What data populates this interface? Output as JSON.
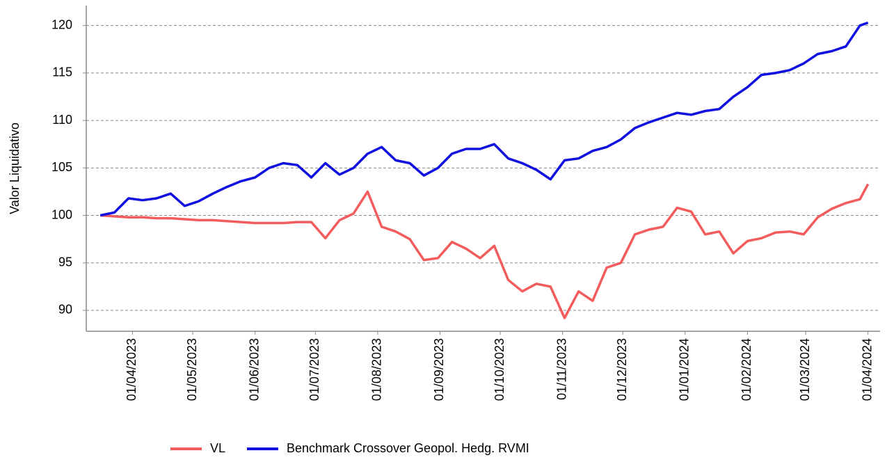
{
  "chart_data": {
    "type": "line",
    "y_label": "Valor Liquidativo",
    "x": [
      "2023-03-16",
      "2023-03-23",
      "2023-03-30",
      "2023-04-06",
      "2023-04-13",
      "2023-04-20",
      "2023-04-27",
      "2023-05-04",
      "2023-05-11",
      "2023-05-18",
      "2023-05-25",
      "2023-06-01",
      "2023-06-08",
      "2023-06-15",
      "2023-06-22",
      "2023-06-29",
      "2023-07-06",
      "2023-07-13",
      "2023-07-20",
      "2023-07-27",
      "2023-08-03",
      "2023-08-10",
      "2023-08-17",
      "2023-08-24",
      "2023-08-31",
      "2023-09-07",
      "2023-09-14",
      "2023-09-21",
      "2023-09-28",
      "2023-10-05",
      "2023-10-12",
      "2023-10-19",
      "2023-10-26",
      "2023-11-02",
      "2023-11-09",
      "2023-11-16",
      "2023-11-23",
      "2023-11-30",
      "2023-12-07",
      "2023-12-14",
      "2023-12-21",
      "2023-12-28",
      "2024-01-04",
      "2024-01-11",
      "2024-01-18",
      "2024-01-25",
      "2024-02-01",
      "2024-02-08",
      "2024-02-15",
      "2024-02-22",
      "2024-02-29",
      "2024-03-07",
      "2024-03-14",
      "2024-03-21",
      "2024-03-28",
      "2024-04-01"
    ],
    "series": [
      {
        "name": "VL",
        "color": "#f25c5c",
        "values": [
          100,
          99.9,
          99.8,
          99.8,
          99.7,
          99.7,
          99.6,
          99.5,
          99.5,
          99.4,
          99.3,
          99.2,
          99.2,
          99.2,
          99.3,
          99.3,
          97.6,
          99.5,
          100.2,
          102.5,
          98.8,
          98.3,
          97.5,
          95.3,
          95.5,
          97.2,
          96.5,
          95.5,
          96.8,
          93.2,
          92,
          92.8,
          92.5,
          89.2,
          92,
          91,
          94.5,
          95,
          98,
          98.5,
          98.8,
          100.8,
          100.4,
          98,
          98.3,
          96,
          97.3,
          97.6,
          98.2,
          98.3,
          98,
          99.8,
          100.7,
          101.3,
          101.7,
          103.3
        ]
      },
      {
        "name": "Benchmark Crossover Geopol. Hedg. RVMI",
        "color": "#1010e0",
        "values": [
          100,
          100.3,
          101.8,
          101.6,
          101.8,
          102.3,
          101,
          101.5,
          102.3,
          103,
          103.6,
          104,
          105,
          105.5,
          105.3,
          104,
          105.5,
          104.3,
          105,
          106.5,
          107.2,
          105.8,
          105.5,
          104.2,
          105,
          106.5,
          107,
          107,
          107.5,
          106,
          105.5,
          104.8,
          103.8,
          105.8,
          106,
          106.8,
          107.2,
          108,
          109.2,
          109.8,
          110.3,
          110.8,
          110.6,
          111,
          111.2,
          112.5,
          113.5,
          114.8,
          115,
          115.3,
          116,
          117,
          117.3,
          117.8,
          120,
          120.3
        ]
      }
    ],
    "xlim": [
      "2023-03-09",
      "2024-04-07"
    ],
    "xticks": [
      {
        "value": "2023-04-01",
        "label": "01/04/2023"
      },
      {
        "value": "2023-05-01",
        "label": "01/05/2023"
      },
      {
        "value": "2023-06-01",
        "label": "01/06/2023"
      },
      {
        "value": "2023-07-01",
        "label": "01/07/2023"
      },
      {
        "value": "2023-08-01",
        "label": "01/08/2023"
      },
      {
        "value": "2023-09-01",
        "label": "01/09/2023"
      },
      {
        "value": "2023-10-01",
        "label": "01/10/2023"
      },
      {
        "value": "2023-11-01",
        "label": "01/11/2023"
      },
      {
        "value": "2023-12-01",
        "label": "01/12/2023"
      },
      {
        "value": "2024-01-01",
        "label": "01/01/2024"
      },
      {
        "value": "2024-02-01",
        "label": "01/02/2024"
      },
      {
        "value": "2024-03-01",
        "label": "01/03/2024"
      },
      {
        "value": "2024-04-01",
        "label": "01/04/2024"
      }
    ],
    "ylim": [
      87.8,
      122.1
    ],
    "yticks": [
      90,
      95,
      100,
      105,
      110,
      115,
      120
    ],
    "grid": true
  }
}
